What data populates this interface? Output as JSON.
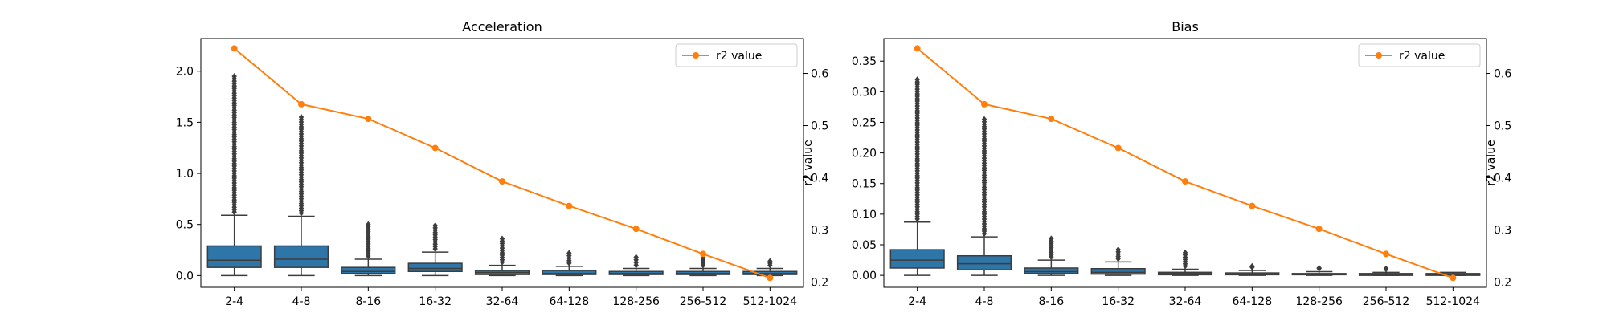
{
  "chart_data": [
    {
      "type": "box",
      "title": "Acceleration",
      "xlabel": "",
      "ylabel": "",
      "y2label": "r2 value",
      "ylim": [
        -0.115,
        2.32
      ],
      "yticks": [
        0.0,
        0.5,
        1.0,
        1.5,
        2.0
      ],
      "ytick_labels": [
        "0.0",
        "0.5",
        "1.0",
        "1.5",
        "2.0"
      ],
      "y2lim": [
        0.19,
        0.667
      ],
      "y2ticks": [
        0.2,
        0.3,
        0.4,
        0.5,
        0.6
      ],
      "y2tick_labels": [
        "0.2",
        "0.3",
        "0.4",
        "0.5",
        "0.6"
      ],
      "categories": [
        "2-4",
        "4-8",
        "8-16",
        "16-32",
        "32-64",
        "64-128",
        "128-256",
        "256-512",
        "512-1024"
      ],
      "box_color": "#2e75a8",
      "boxes": [
        {
          "whisker_low": 0.0,
          "q1": 0.08,
          "median": 0.15,
          "q3": 0.29,
          "whisker_high": 0.59,
          "outlier_max": 1.95
        },
        {
          "whisker_low": 0.0,
          "q1": 0.08,
          "median": 0.16,
          "q3": 0.29,
          "whisker_high": 0.58,
          "outlier_max": 1.55
        },
        {
          "whisker_low": 0.0,
          "q1": 0.02,
          "median": 0.04,
          "q3": 0.08,
          "whisker_high": 0.16,
          "outlier_max": 0.5
        },
        {
          "whisker_low": 0.0,
          "q1": 0.04,
          "median": 0.07,
          "q3": 0.12,
          "whisker_high": 0.23,
          "outlier_max": 0.49
        },
        {
          "whisker_low": 0.0,
          "q1": 0.01,
          "median": 0.03,
          "q3": 0.05,
          "whisker_high": 0.1,
          "outlier_max": 0.36
        },
        {
          "whisker_low": 0.0,
          "q1": 0.01,
          "median": 0.02,
          "q3": 0.05,
          "whisker_high": 0.09,
          "outlier_max": 0.22
        },
        {
          "whisker_low": 0.0,
          "q1": 0.01,
          "median": 0.02,
          "q3": 0.04,
          "whisker_high": 0.07,
          "outlier_max": 0.18
        },
        {
          "whisker_low": 0.0,
          "q1": 0.01,
          "median": 0.02,
          "q3": 0.04,
          "whisker_high": 0.07,
          "outlier_max": 0.17
        },
        {
          "whisker_low": 0.0,
          "q1": 0.01,
          "median": 0.02,
          "q3": 0.04,
          "whisker_high": 0.07,
          "outlier_max": 0.14
        }
      ],
      "series": [
        {
          "name": "r2 value",
          "axis": "right",
          "color": "#ff7f0e",
          "values": [
            0.648,
            0.541,
            0.513,
            0.457,
            0.393,
            0.346,
            0.302,
            0.254,
            0.208
          ]
        }
      ],
      "legend_position": "top-right",
      "grid": false
    },
    {
      "type": "box",
      "title": "Bias",
      "xlabel": "",
      "ylabel": "",
      "y2label": "r2 value",
      "ylim": [
        -0.0195,
        0.387
      ],
      "yticks": [
        0.0,
        0.05,
        0.1,
        0.15,
        0.2,
        0.25,
        0.3,
        0.35
      ],
      "ytick_labels": [
        "0.00",
        "0.05",
        "0.10",
        "0.15",
        "0.20",
        "0.25",
        "0.30",
        "0.35"
      ],
      "y2lim": [
        0.19,
        0.667
      ],
      "y2ticks": [
        0.2,
        0.3,
        0.4,
        0.5,
        0.6
      ],
      "y2tick_labels": [
        "0.2",
        "0.3",
        "0.4",
        "0.5",
        "0.6"
      ],
      "categories": [
        "2-4",
        "4-8",
        "8-16",
        "16-32",
        "32-64",
        "64-128",
        "128-256",
        "256-512",
        "512-1024"
      ],
      "box_color": "#2e75a8",
      "boxes": [
        {
          "whisker_low": 0.0,
          "q1": 0.012,
          "median": 0.025,
          "q3": 0.042,
          "whisker_high": 0.087,
          "outlier_max": 0.32
        },
        {
          "whisker_low": 0.0,
          "q1": 0.009,
          "median": 0.019,
          "q3": 0.032,
          "whisker_high": 0.063,
          "outlier_max": 0.255
        },
        {
          "whisker_low": 0.0,
          "q1": 0.003,
          "median": 0.006,
          "q3": 0.012,
          "whisker_high": 0.025,
          "outlier_max": 0.06
        },
        {
          "whisker_low": 0.0,
          "q1": 0.002,
          "median": 0.005,
          "q3": 0.011,
          "whisker_high": 0.022,
          "outlier_max": 0.042
        },
        {
          "whisker_low": 0.0,
          "q1": 0.001,
          "median": 0.003,
          "q3": 0.005,
          "whisker_high": 0.01,
          "outlier_max": 0.037
        },
        {
          "whisker_low": 0.0,
          "q1": 0.001,
          "median": 0.002,
          "q3": 0.004,
          "whisker_high": 0.008,
          "outlier_max": 0.015
        },
        {
          "whisker_low": 0.0,
          "q1": 0.001,
          "median": 0.002,
          "q3": 0.003,
          "whisker_high": 0.006,
          "outlier_max": 0.012
        },
        {
          "whisker_low": 0.0,
          "q1": 0.0,
          "median": 0.001,
          "q3": 0.003,
          "whisker_high": 0.005,
          "outlier_max": 0.011
        },
        {
          "whisker_low": 0.0,
          "q1": 0.0,
          "median": 0.001,
          "q3": 0.003,
          "whisker_high": 0.005,
          "outlier_max": 0.008
        }
      ],
      "series": [
        {
          "name": "r2 value",
          "axis": "right",
          "color": "#ff7f0e",
          "values": [
            0.648,
            0.541,
            0.513,
            0.457,
            0.393,
            0.346,
            0.302,
            0.254,
            0.208
          ]
        }
      ],
      "legend_position": "top-right",
      "grid": false
    }
  ]
}
